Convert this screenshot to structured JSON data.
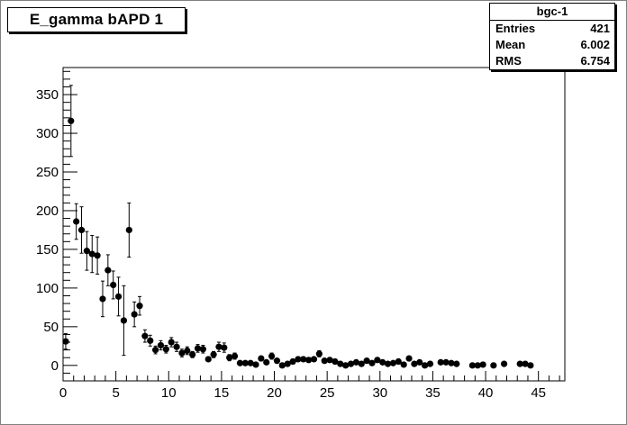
{
  "title": "E_gamma bAPD 1",
  "stats": {
    "name": "bgc-1",
    "rows": [
      {
        "label": "Entries",
        "value": "421"
      },
      {
        "label": "Mean",
        "value": "6.002"
      },
      {
        "label": "RMS",
        "value": "6.754"
      }
    ]
  },
  "chart_data": {
    "type": "scatter",
    "title": "E_gamma bAPD 1",
    "xlabel": "",
    "ylabel": "",
    "xlim": [
      0,
      47.5
    ],
    "ylim": [
      -20,
      385
    ],
    "grid": false,
    "x_ticks": [
      0,
      5,
      10,
      15,
      20,
      25,
      30,
      35,
      40,
      45
    ],
    "y_ticks": [
      0,
      50,
      100,
      150,
      200,
      250,
      300,
      350
    ],
    "x": [
      0.25,
      0.75,
      1.25,
      1.75,
      2.25,
      2.75,
      3.25,
      3.75,
      4.25,
      4.75,
      5.25,
      5.75,
      6.25,
      6.75,
      7.25,
      7.75,
      8.25,
      8.75,
      9.25,
      9.75,
      10.25,
      10.75,
      11.25,
      11.75,
      12.25,
      12.75,
      13.25,
      13.75,
      14.25,
      14.75,
      15.25,
      15.75,
      16.25,
      16.75,
      17.25,
      17.75,
      18.25,
      18.75,
      19.25,
      19.75,
      20.25,
      20.75,
      21.25,
      21.75,
      22.25,
      22.75,
      23.25,
      23.75,
      24.25,
      24.75,
      25.25,
      25.75,
      26.25,
      26.75,
      27.25,
      27.75,
      28.25,
      28.75,
      29.25,
      29.75,
      30.25,
      30.75,
      31.25,
      31.75,
      32.25,
      32.75,
      33.25,
      33.75,
      34.25,
      34.75,
      35.75,
      36.25,
      36.75,
      37.25,
      38.75,
      39.25,
      39.75,
      40.75,
      41.75,
      43.25,
      43.75,
      44.25
    ],
    "y": [
      31,
      316,
      186,
      175,
      148,
      144,
      142,
      86,
      123,
      104,
      89,
      58,
      175,
      66,
      77,
      38,
      32,
      20,
      26,
      21,
      30,
      24,
      16,
      19,
      14,
      22,
      21,
      8,
      14,
      24,
      23,
      10,
      12,
      3,
      3,
      3,
      1,
      9,
      4,
      12,
      6,
      0,
      2,
      5,
      8,
      8,
      7,
      8,
      15,
      6,
      7,
      5,
      2,
      0,
      2,
      4,
      2,
      6,
      3,
      7,
      4,
      2,
      3,
      5,
      1,
      9,
      2,
      4,
      0,
      2,
      4,
      4,
      3,
      2,
      0,
      0,
      1,
      0,
      2,
      2,
      2,
      0
    ],
    "errors": [
      10,
      46,
      23,
      30,
      25,
      24,
      24,
      23,
      20,
      18,
      25,
      45,
      35,
      16,
      12,
      8,
      7,
      5,
      6,
      5,
      6,
      6,
      5,
      5,
      4,
      5,
      5,
      3,
      4,
      6,
      6,
      4,
      4,
      2,
      2,
      2,
      1,
      3,
      2,
      4,
      3,
      1,
      2,
      3,
      3,
      3,
      3,
      3,
      4,
      3,
      3,
      3,
      2,
      1,
      2,
      2,
      2,
      3,
      2,
      3,
      2,
      2,
      2,
      3,
      1,
      3,
      2,
      2,
      1,
      2,
      2,
      2,
      2,
      2,
      1,
      1,
      1,
      1,
      2,
      2,
      2,
      1
    ]
  }
}
